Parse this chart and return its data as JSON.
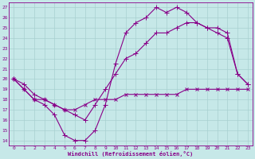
{
  "xlabel": "Windchill (Refroidissement éolien,°C)",
  "ylabel": "",
  "xlim": [
    -0.5,
    23.5
  ],
  "ylim": [
    13.5,
    27.5
  ],
  "xticks": [
    0,
    1,
    2,
    3,
    4,
    5,
    6,
    7,
    8,
    9,
    10,
    11,
    12,
    13,
    14,
    15,
    16,
    17,
    18,
    19,
    20,
    21,
    22,
    23
  ],
  "yticks": [
    14,
    15,
    16,
    17,
    18,
    19,
    20,
    21,
    22,
    23,
    24,
    25,
    26,
    27
  ],
  "bg_color": "#c6e8e8",
  "line_color": "#880088",
  "grid_color": "#a8d0d0",
  "line1_x": [
    0,
    1,
    2,
    3,
    4,
    5,
    6,
    7,
    8,
    9,
    10,
    11,
    12,
    13,
    14,
    15,
    16,
    17,
    18,
    19,
    20,
    21,
    22,
    23
  ],
  "line1_y": [
    20.0,
    19.0,
    18.0,
    18.0,
    17.5,
    17.0,
    17.0,
    17.5,
    18.0,
    18.0,
    18.0,
    18.5,
    18.5,
    18.5,
    18.5,
    18.5,
    18.5,
    19.0,
    19.0,
    19.0,
    19.0,
    19.0,
    19.0,
    19.0
  ],
  "line2_x": [
    0,
    1,
    2,
    3,
    4,
    5,
    6,
    7,
    8,
    9,
    10,
    11,
    12,
    13,
    14,
    15,
    16,
    17,
    18,
    19,
    20,
    21,
    22,
    23
  ],
  "line2_y": [
    20.0,
    19.5,
    18.5,
    18.0,
    17.5,
    17.0,
    16.5,
    16.0,
    17.5,
    19.0,
    20.5,
    22.0,
    22.5,
    23.5,
    24.5,
    24.5,
    25.0,
    25.5,
    25.5,
    25.0,
    24.5,
    24.0,
    20.5,
    19.5
  ],
  "line3_x": [
    0,
    1,
    2,
    3,
    4,
    5,
    6,
    7,
    8,
    9,
    10,
    11,
    12,
    13,
    14,
    15,
    16,
    17,
    18,
    19,
    20,
    21,
    22,
    23
  ],
  "line3_y": [
    20.0,
    19.0,
    18.0,
    17.5,
    16.5,
    14.5,
    14.0,
    14.0,
    15.0,
    17.5,
    21.5,
    24.5,
    25.5,
    26.0,
    27.0,
    26.5,
    27.0,
    26.5,
    25.5,
    25.0,
    25.0,
    24.5,
    20.5,
    19.5
  ]
}
